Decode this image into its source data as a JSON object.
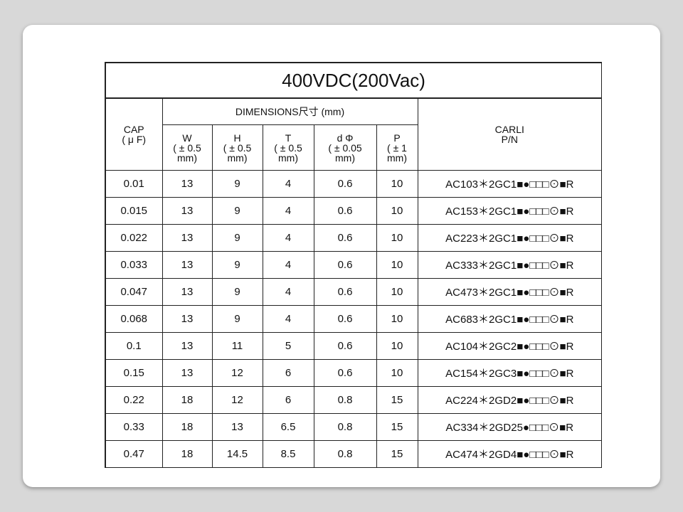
{
  "title": "400VDC(200Vac)",
  "headers": {
    "cap": [
      "CAP",
      "( μ F)"
    ],
    "dimensions": "DIMENSIONS尺寸 (mm)",
    "w": [
      "W",
      "( ± 0.5",
      "mm)"
    ],
    "h": [
      "H",
      "( ± 0.5",
      "mm)"
    ],
    "t": [
      "T",
      "( ± 0.5",
      "mm)"
    ],
    "d": [
      "d Φ",
      "( ± 0.05",
      "mm)"
    ],
    "p": [
      "P",
      "( ± 1",
      "mm)"
    ],
    "pn": [
      "CARLI",
      "P/N"
    ]
  },
  "rows": [
    {
      "cap": "0.01",
      "w": "13",
      "h": "9",
      "t": "4",
      "d": "0.6",
      "p": "10",
      "pn": "AC103＊2GC1■●□□□⊙■R"
    },
    {
      "cap": "0.015",
      "w": "13",
      "h": "9",
      "t": "4",
      "d": "0.6",
      "p": "10",
      "pn": "AC153＊2GC1■●□□□⊙■R"
    },
    {
      "cap": "0.022",
      "w": "13",
      "h": "9",
      "t": "4",
      "d": "0.6",
      "p": "10",
      "pn": "AC223＊2GC1■●□□□⊙■R"
    },
    {
      "cap": "0.033",
      "w": "13",
      "h": "9",
      "t": "4",
      "d": "0.6",
      "p": "10",
      "pn": "AC333＊2GC1■●□□□⊙■R"
    },
    {
      "cap": "0.047",
      "w": "13",
      "h": "9",
      "t": "4",
      "d": "0.6",
      "p": "10",
      "pn": "AC473＊2GC1■●□□□⊙■R"
    },
    {
      "cap": "0.068",
      "w": "13",
      "h": "9",
      "t": "4",
      "d": "0.6",
      "p": "10",
      "pn": "AC683＊2GC1■●□□□⊙■R"
    },
    {
      "cap": "0.1",
      "w": "13",
      "h": "11",
      "t": "5",
      "d": "0.6",
      "p": "10",
      "pn": "AC104＊2GC2■●□□□⊙■R"
    },
    {
      "cap": "0.15",
      "w": "13",
      "h": "12",
      "t": "6",
      "d": "0.6",
      "p": "10",
      "pn": "AC154＊2GC3■●□□□⊙■R"
    },
    {
      "cap": "0.22",
      "w": "18",
      "h": "12",
      "t": "6",
      "d": "0.8",
      "p": "15",
      "pn": "AC224＊2GD2■●□□□⊙■R"
    },
    {
      "cap": "0.33",
      "w": "18",
      "h": "13",
      "t": "6.5",
      "d": "0.8",
      "p": "15",
      "pn": "AC334＊2GD25●□□□⊙■R"
    },
    {
      "cap": "0.47",
      "w": "18",
      "h": "14.5",
      "t": "8.5",
      "d": "0.8",
      "p": "15",
      "pn": "AC474＊2GD4■●□□□⊙■R"
    }
  ]
}
